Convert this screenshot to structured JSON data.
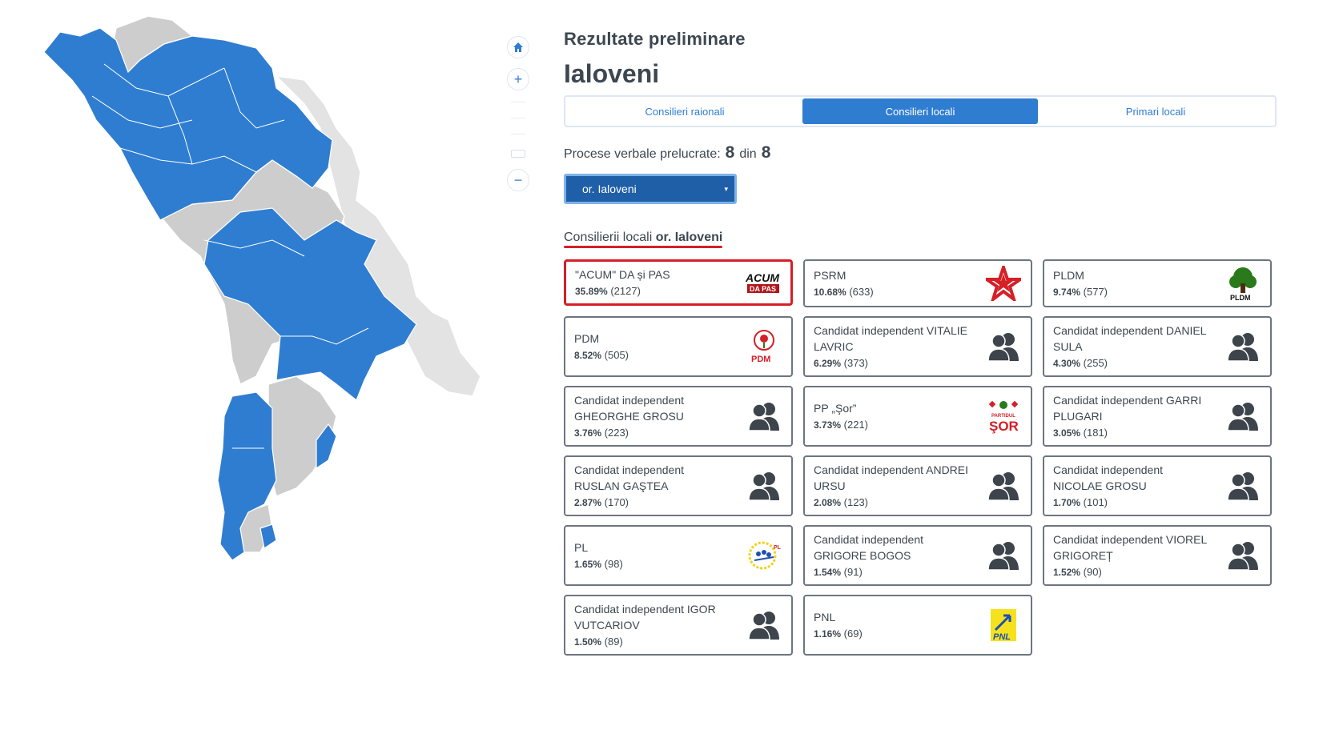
{
  "header": {
    "subtitle": "Rezultate preliminare",
    "title": "Ialoveni"
  },
  "tabs": [
    {
      "label": "Consilieri raionali",
      "active": false
    },
    {
      "label": "Consilieri locali",
      "active": true
    },
    {
      "label": "Primari locali",
      "active": false
    }
  ],
  "processed": {
    "label": "Procese verbale prelucrate:",
    "done": "8",
    "separator": "din",
    "total": "8"
  },
  "locality_select": {
    "value": "or. Ialoveni",
    "caret": "▾"
  },
  "section": {
    "label": "Consilierii locali",
    "place": "or. Ialoveni"
  },
  "map_controls": {
    "home_icon": "home-icon",
    "zoom_in": "+",
    "zoom_out": "−"
  },
  "colors": {
    "accent": "#2f7dd1",
    "region_won": "#2f7dd1",
    "region_other": "#cdcdcd",
    "region_outside": "#e3e3e3",
    "highlight": "#d61f26"
  },
  "results": [
    {
      "name": "\"ACUM\" DA și PAS",
      "pct": "35.89%",
      "votes": "(2127)",
      "logo": "acum-logo"
    },
    {
      "name": "PSRM",
      "pct": "10.68%",
      "votes": "(633)",
      "logo": "psrm-star-logo"
    },
    {
      "name": "PLDM",
      "pct": "9.74%",
      "votes": "(577)",
      "logo": "pldm-tree-logo"
    },
    {
      "name": "PDM",
      "pct": "8.52%",
      "votes": "(505)",
      "logo": "pdm-rose-logo"
    },
    {
      "name": "Candidat independent VITALIE LAVRIC",
      "pct": "6.29%",
      "votes": "(373)",
      "logo": "independent-people-icon"
    },
    {
      "name": "Candidat independent DANIEL SULA",
      "pct": "4.30%",
      "votes": "(255)",
      "logo": "independent-people-icon"
    },
    {
      "name": "Candidat independent GHEORGHE GROSU",
      "pct": "3.76%",
      "votes": "(223)",
      "logo": "independent-people-icon"
    },
    {
      "name": "PP „Şor”",
      "pct": "3.73%",
      "votes": "(221)",
      "logo": "sor-logo"
    },
    {
      "name": "Candidat independent GARRI PLUGARI",
      "pct": "3.05%",
      "votes": "(181)",
      "logo": "independent-people-icon"
    },
    {
      "name": "Candidat independent RUSLAN GAŞTEA",
      "pct": "2.87%",
      "votes": "(170)",
      "logo": "independent-people-icon"
    },
    {
      "name": "Candidat independent ANDREI URSU",
      "pct": "2.08%",
      "votes": "(123)",
      "logo": "independent-people-icon"
    },
    {
      "name": "Candidat independent NICOLAE GROSU",
      "pct": "1.70%",
      "votes": "(101)",
      "logo": "independent-people-icon"
    },
    {
      "name": "PL",
      "pct": "1.65%",
      "votes": "(98)",
      "logo": "pl-logo"
    },
    {
      "name": "Candidat independent GRIGORE BOGOS",
      "pct": "1.54%",
      "votes": "(91)",
      "logo": "independent-people-icon"
    },
    {
      "name": "Candidat independent VIOREL GRIGOREȚ",
      "pct": "1.52%",
      "votes": "(90)",
      "logo": "independent-people-icon"
    },
    {
      "name": "Candidat independent IGOR VUTCARIOV",
      "pct": "1.50%",
      "votes": "(89)",
      "logo": "independent-people-icon"
    },
    {
      "name": "PNL",
      "pct": "1.16%",
      "votes": "(69)",
      "logo": "pnl-logo"
    }
  ],
  "logo_texts": {
    "acum_top": "ACUM",
    "acum_bottom": "DA PAS",
    "pldm": "PLDM",
    "pdm": "PDM",
    "sor_small": "PARTIDUL",
    "sor_big": "ŞOR",
    "pnl": "PNL",
    "pl": "PL"
  }
}
